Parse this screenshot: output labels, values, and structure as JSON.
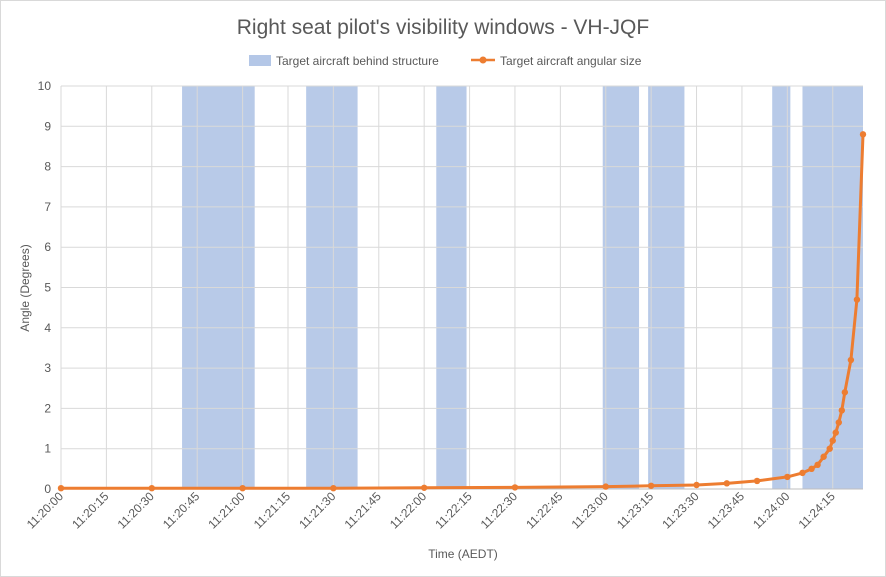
{
  "chart_data": {
    "type": "line",
    "title": "Right seat pilot's visibility windows - VH-JQF",
    "xlabel": "Time (AEDT)",
    "ylabel": "Angle (Degrees)",
    "ylim": [
      0,
      10
    ],
    "yticks": [
      0,
      1,
      2,
      3,
      4,
      5,
      6,
      7,
      8,
      9,
      10
    ],
    "xlim": [
      "11:20:00",
      "11:24:25"
    ],
    "xticks": [
      "11:20:00",
      "11:20:15",
      "11:20:30",
      "11:20:45",
      "11:21:00",
      "11:21:15",
      "11:21:30",
      "11:21:45",
      "11:22:00",
      "11:22:15",
      "11:22:30",
      "11:22:45",
      "11:23:00",
      "11:23:15",
      "11:23:30",
      "11:23:45",
      "11:24:00",
      "11:24:15"
    ],
    "grid": true,
    "legend_position": "top",
    "bands": {
      "name": "Target aircraft behind structure",
      "color": "#b4c7e7",
      "intervals": [
        [
          "11:20:40",
          "11:21:04"
        ],
        [
          "11:21:21",
          "11:21:38"
        ],
        [
          "11:22:04",
          "11:22:14"
        ],
        [
          "11:22:59",
          "11:23:11"
        ],
        [
          "11:23:14",
          "11:23:26"
        ],
        [
          "11:23:55",
          "11:24:01"
        ],
        [
          "11:24:05",
          "11:24:25"
        ]
      ]
    },
    "series": [
      {
        "name": "Target aircraft angular size",
        "color": "#ed7d31",
        "points": [
          [
            "11:20:00",
            0.02
          ],
          [
            "11:20:30",
            0.02
          ],
          [
            "11:21:00",
            0.02
          ],
          [
            "11:21:30",
            0.02
          ],
          [
            "11:22:00",
            0.03
          ],
          [
            "11:22:30",
            0.04
          ],
          [
            "11:23:00",
            0.06
          ],
          [
            "11:23:15",
            0.08
          ],
          [
            "11:23:30",
            0.1
          ],
          [
            "11:23:40",
            0.14
          ],
          [
            "11:23:50",
            0.2
          ],
          [
            "11:24:00",
            0.3
          ],
          [
            "11:24:05",
            0.4
          ],
          [
            "11:24:08",
            0.5
          ],
          [
            "11:24:10",
            0.6
          ],
          [
            "11:24:12",
            0.8
          ],
          [
            "11:24:14",
            1.0
          ],
          [
            "11:24:15",
            1.2
          ],
          [
            "11:24:16",
            1.4
          ],
          [
            "11:24:17",
            1.65
          ],
          [
            "11:24:18",
            1.95
          ],
          [
            "11:24:19",
            2.4
          ],
          [
            "11:24:21",
            3.2
          ],
          [
            "11:24:23",
            4.7
          ],
          [
            "11:24:25",
            8.8
          ]
        ]
      }
    ]
  }
}
